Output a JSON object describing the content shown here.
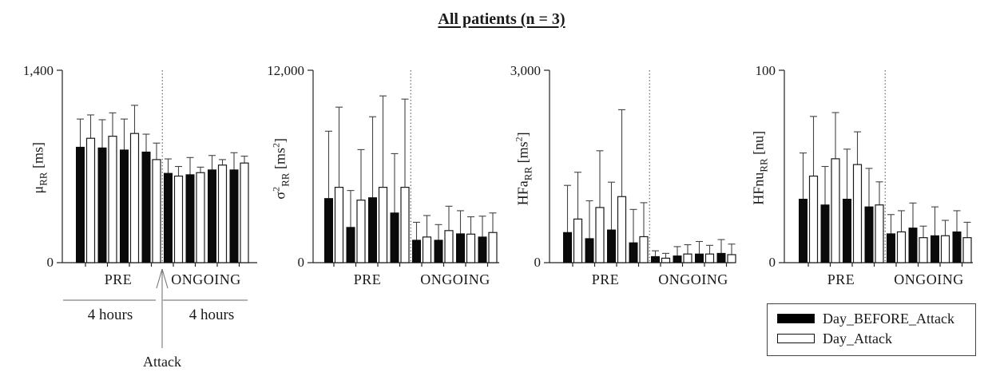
{
  "title": "All patients (n = 3)",
  "legend": {
    "items": [
      {
        "label": "Day_BEFORE_Attack",
        "fill": "#000000"
      },
      {
        "label": "Day_Attack",
        "fill": "#ffffff"
      }
    ]
  },
  "annotations": {
    "pre_label": "PRE",
    "ongoing_label": "ONGOING",
    "left_duration": "4 hours",
    "right_duration": "4 hours",
    "attack_label": "Attack"
  },
  "colors": {
    "bar_black": "#000000",
    "bar_white": "#ffffff",
    "stroke": "#222222",
    "annotation_line": "#999999"
  },
  "chart_data": [
    {
      "type": "bar",
      "ylabel": "μRR [ms]",
      "ylabel_rich": [
        {
          "t": "μ"
        },
        {
          "t": "RR",
          "v": "sub"
        },
        {
          "t": " [ms]"
        }
      ],
      "ylim": [
        0,
        1400
      ],
      "ytick_labels": [
        "0",
        "1,400"
      ],
      "sections": [
        "PRE",
        "ONGOING"
      ],
      "groups_per_section": 4,
      "divider": "dotted",
      "series": [
        {
          "name": "Day_BEFORE_Attack",
          "fill": "#000000",
          "values": [
            840,
            835,
            820,
            805,
            650,
            640,
            675,
            675
          ],
          "errors": [
            205,
            205,
            225,
            130,
            105,
            125,
            105,
            125
          ]
        },
        {
          "name": "Day_Attack",
          "fill": "#ffffff",
          "values": [
            905,
            920,
            940,
            750,
            630,
            655,
            710,
            725
          ],
          "errors": [
            170,
            170,
            205,
            120,
            70,
            40,
            40,
            50
          ]
        }
      ]
    },
    {
      "type": "bar",
      "ylabel": "σ2RR [ms2]",
      "ylabel_rich": [
        {
          "t": "σ"
        },
        {
          "t": "2",
          "v": "sup"
        },
        {
          "t": "RR",
          "v": "sub"
        },
        {
          "t": " [ms"
        },
        {
          "t": "2",
          "v": "sup"
        },
        {
          "t": "]"
        }
      ],
      "ylim": [
        0,
        12000
      ],
      "ytick_labels": [
        "0",
        "12,000"
      ],
      "sections": [
        "PRE",
        "ONGOING"
      ],
      "groups_per_section": 4,
      "divider": "dotted",
      "series": [
        {
          "name": "Day_BEFORE_Attack",
          "fill": "#000000",
          "values": [
            4000,
            2200,
            4050,
            3100,
            1400,
            1400,
            1800,
            1600
          ],
          "errors": [
            4200,
            2300,
            5050,
            3700,
            1120,
            975,
            1440,
            1300
          ]
        },
        {
          "name": "Day_Attack",
          "fill": "#ffffff",
          "values": [
            4700,
            3900,
            4700,
            4700,
            1600,
            2000,
            1780,
            1880
          ],
          "errors": [
            5000,
            3150,
            5700,
            5500,
            1340,
            1520,
            1080,
            1220
          ]
        }
      ]
    },
    {
      "type": "bar",
      "ylabel": "HFaRR [ms2]",
      "ylabel_rich": [
        {
          "t": "HFa"
        },
        {
          "t": "RR",
          "v": "sub"
        },
        {
          "t": " [ms"
        },
        {
          "t": "2",
          "v": "sup"
        },
        {
          "t": "]"
        }
      ],
      "ylim": [
        0,
        3000
      ],
      "ytick_labels": [
        "0",
        "3,000"
      ],
      "sections": [
        "PRE",
        "ONGOING"
      ],
      "groups_per_section": 4,
      "divider": "dotted",
      "series": [
        {
          "name": "Day_BEFORE_Attack",
          "fill": "#000000",
          "values": [
            470,
            375,
            510,
            310,
            95,
            105,
            135,
            145
          ],
          "errors": [
            735,
            590,
            745,
            520,
            90,
            145,
            195,
            215
          ]
        },
        {
          "name": "Day_Attack",
          "fill": "#ffffff",
          "values": [
            680,
            860,
            1030,
            405,
            70,
            135,
            135,
            125
          ],
          "errors": [
            730,
            885,
            1355,
            530,
            75,
            145,
            135,
            165
          ]
        }
      ]
    },
    {
      "type": "bar",
      "ylabel": "HFnuRR [nu]",
      "ylabel_rich": [
        {
          "t": "HFnu"
        },
        {
          "t": "RR",
          "v": "sub"
        },
        {
          "t": " [nu]"
        }
      ],
      "ylim": [
        0,
        100
      ],
      "ytick_labels": [
        "0",
        "100"
      ],
      "sections": [
        "PRE",
        "ONGOING"
      ],
      "groups_per_section": 4,
      "divider": "dotted",
      "series": [
        {
          "name": "Day_BEFORE_Attack",
          "fill": "#000000",
          "values": [
            33,
            30,
            33,
            29,
            15,
            18,
            14,
            16
          ],
          "errors": [
            24,
            20,
            26,
            20,
            10,
            13,
            15,
            11
          ]
        },
        {
          "name": "Day_Attack",
          "fill": "#ffffff",
          "values": [
            45,
            54,
            51,
            30,
            16,
            13,
            14,
            13
          ],
          "errors": [
            31,
            24,
            17,
            12,
            11,
            6,
            8,
            8
          ]
        }
      ]
    }
  ]
}
